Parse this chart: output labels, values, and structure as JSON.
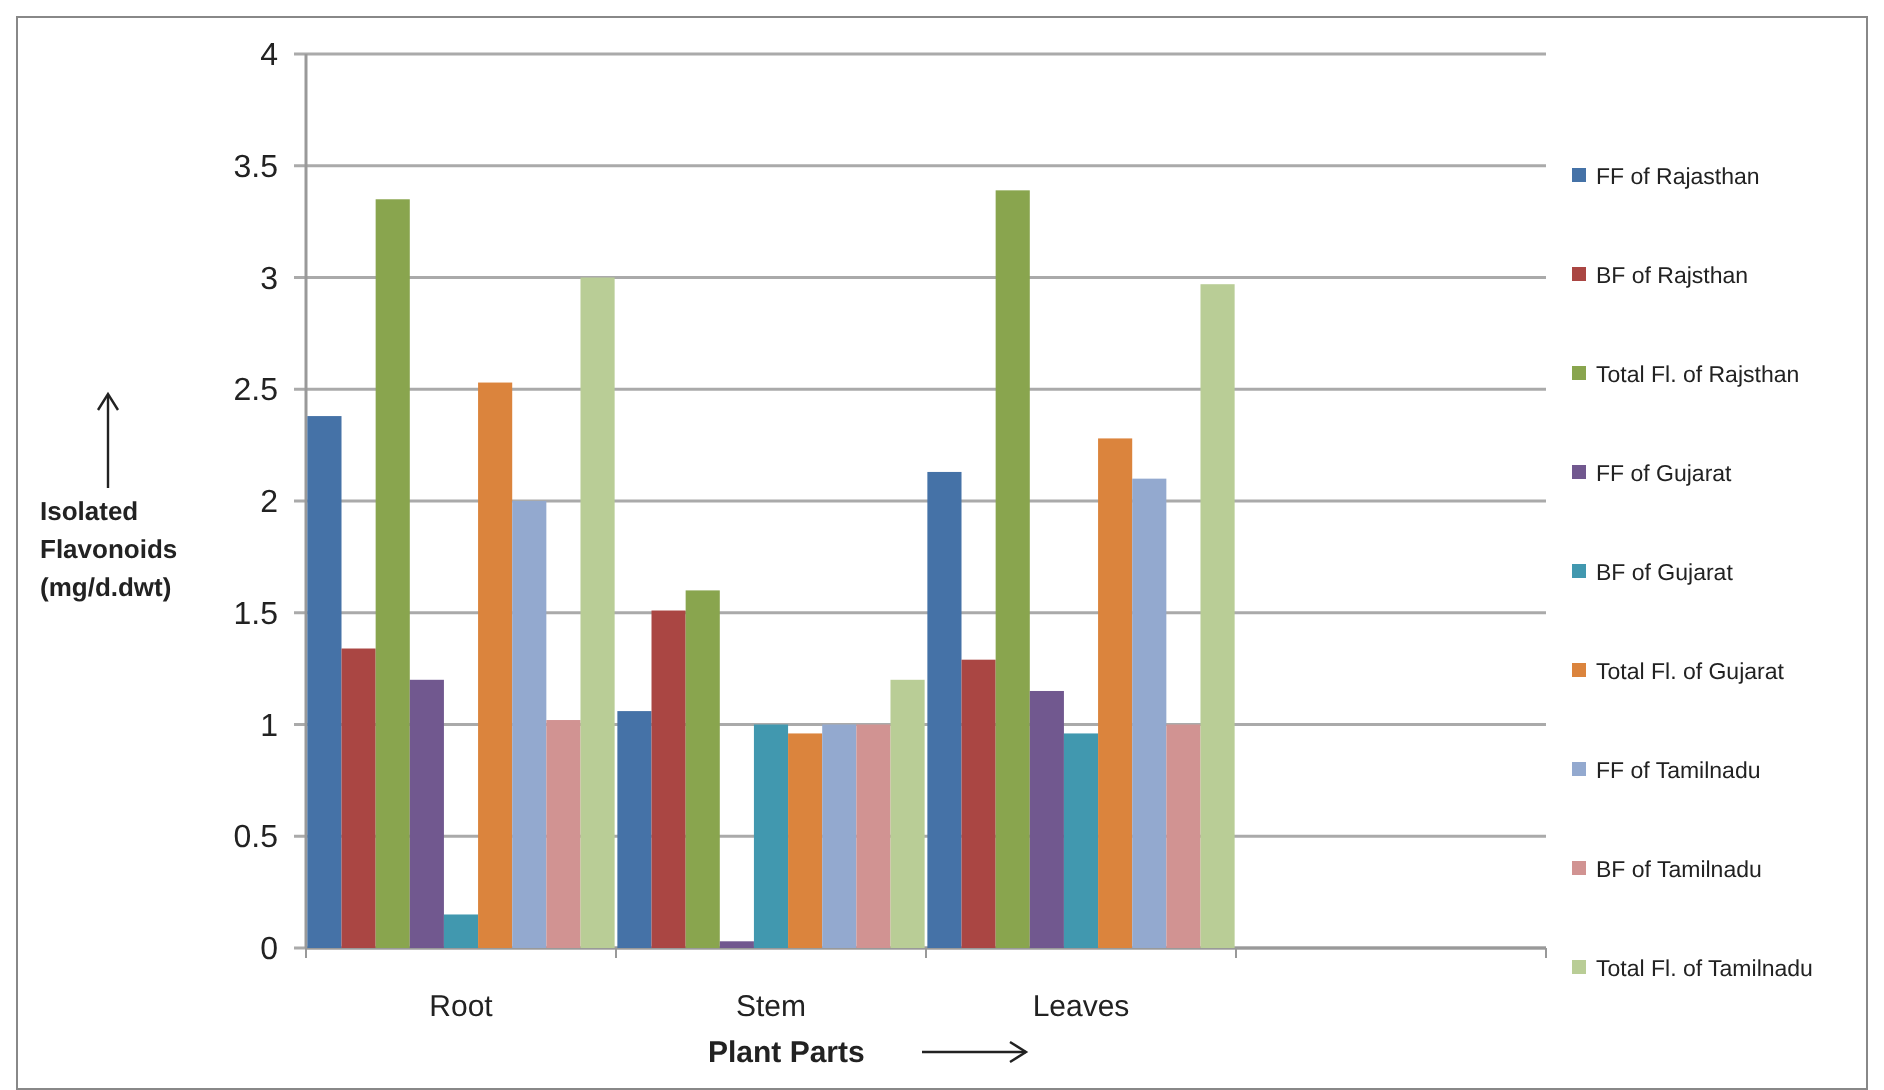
{
  "chart_data": {
    "type": "bar",
    "xlabel": "Plant Parts",
    "ylabel": "Isolated Flavonoids (mg/d.dwt)",
    "categories": [
      "Root",
      "Stem",
      "Leaves",
      null
    ],
    "ylim": [
      0,
      4
    ],
    "yticks": [
      0,
      0.5,
      1,
      1.5,
      2,
      2.5,
      3,
      3.5,
      4
    ],
    "grid": "y",
    "legend": "right",
    "series": [
      {
        "name": "FF of Rajasthan",
        "color": "#4572a7",
        "values": [
          2.38,
          1.06,
          2.13,
          null
        ]
      },
      {
        "name": "BF of Rajsthan",
        "color": "#aa4643",
        "values": [
          1.34,
          1.51,
          1.29,
          null
        ]
      },
      {
        "name": "Total Fl. of Rajsthan",
        "color": "#89a54e",
        "values": [
          3.35,
          1.6,
          3.39,
          null
        ]
      },
      {
        "name": "FF of Gujarat",
        "color": "#71588f",
        "values": [
          1.2,
          0.03,
          1.15,
          null
        ]
      },
      {
        "name": "BF of Gujarat",
        "color": "#4198af",
        "values": [
          0.15,
          1.0,
          0.96,
          null
        ]
      },
      {
        "name": "Total Fl. of Gujarat",
        "color": "#db843d",
        "values": [
          2.53,
          0.96,
          2.28,
          null
        ]
      },
      {
        "name": "FF of Tamilnadu",
        "color": "#93a9cf",
        "values": [
          2.0,
          1.0,
          2.1,
          null
        ]
      },
      {
        "name": "BF of Tamilnadu",
        "color": "#d19392",
        "values": [
          1.02,
          1.0,
          1.0,
          null
        ]
      },
      {
        "name": "Total Fl. of Tamilnadu",
        "color": "#b9cd96",
        "values": [
          3.0,
          1.2,
          2.97,
          null
        ]
      }
    ]
  }
}
